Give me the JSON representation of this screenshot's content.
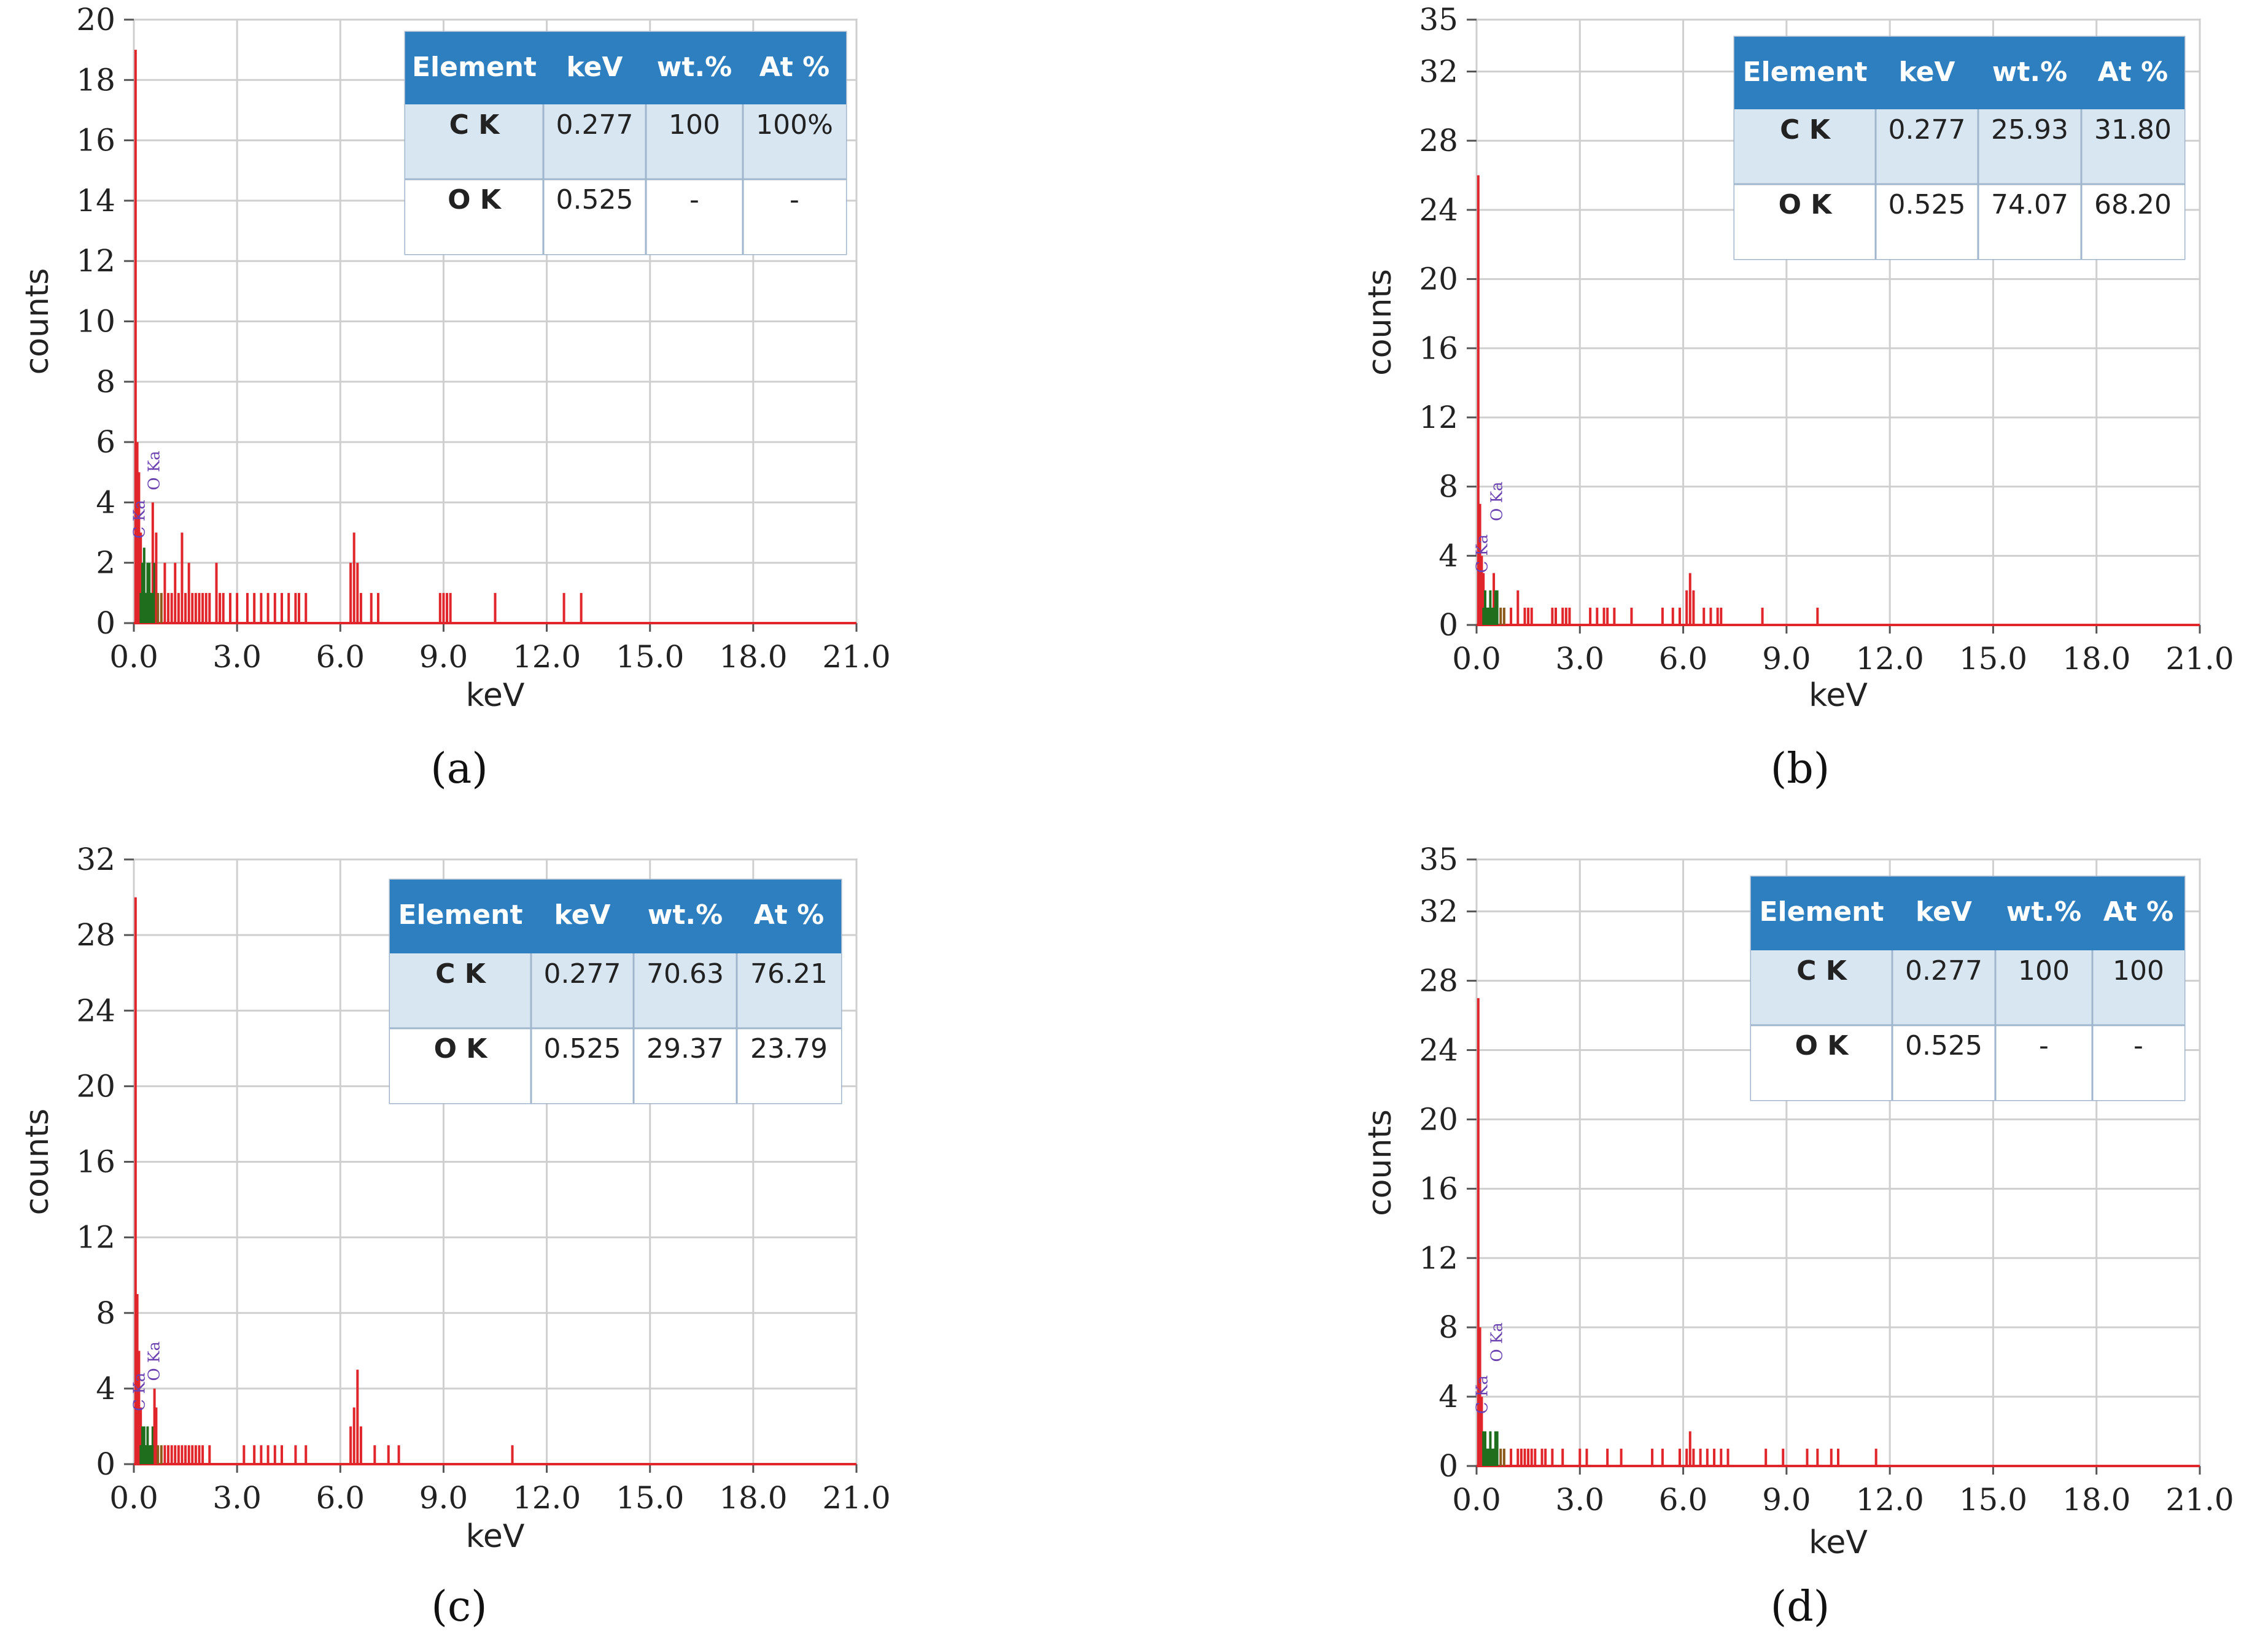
{
  "figure": {
    "panel_labels": [
      "(a)",
      "(b)",
      "(c)",
      "(d)"
    ],
    "axis_xlabel": "keV",
    "axis_ylabel": "counts",
    "peak_labels": [
      "C Ka",
      "O Ka"
    ],
    "table_headers": [
      "Element",
      "keV",
      "wt.%",
      "At %"
    ],
    "colors": {
      "spectrum": "#e0252b",
      "spectrum_dark": "#1e6e1e",
      "spectrum_brown": "#8a5a1a",
      "header": "#2e7fbf",
      "row_band": "#d8e6f2",
      "grid": "#cfcfcf",
      "peak_label": "#6a3fb0"
    }
  },
  "chart_data": [
    {
      "type": "bar",
      "panel": "(a)",
      "xlabel": "keV",
      "ylabel": "counts",
      "xlim": [
        0,
        21
      ],
      "ylim": [
        0,
        20
      ],
      "xticks": [
        "0.0",
        "3.0",
        "6.0",
        "9.0",
        "12.0",
        "15.0",
        "18.0",
        "21.0"
      ],
      "yticks": [
        "0",
        "2",
        "4",
        "6",
        "8",
        "10",
        "12",
        "14",
        "16",
        "18",
        "20"
      ],
      "peaks": [
        [
          0.05,
          19
        ],
        [
          0.1,
          6
        ],
        [
          0.15,
          5
        ],
        [
          0.2,
          3
        ],
        [
          0.25,
          2
        ],
        [
          0.3,
          2.5
        ],
        [
          0.35,
          1
        ],
        [
          0.4,
          2
        ],
        [
          0.45,
          2
        ],
        [
          0.5,
          1
        ],
        [
          0.55,
          4
        ],
        [
          0.6,
          2
        ],
        [
          0.65,
          3
        ],
        [
          0.7,
          1
        ],
        [
          0.8,
          1
        ],
        [
          0.9,
          2
        ],
        [
          1.0,
          1
        ],
        [
          1.1,
          1
        ],
        [
          1.2,
          2
        ],
        [
          1.3,
          1
        ],
        [
          1.4,
          3
        ],
        [
          1.5,
          1
        ],
        [
          1.6,
          2
        ],
        [
          1.7,
          1
        ],
        [
          1.8,
          1
        ],
        [
          1.9,
          1
        ],
        [
          2.0,
          1
        ],
        [
          2.1,
          1
        ],
        [
          2.2,
          1
        ],
        [
          2.4,
          2
        ],
        [
          2.5,
          1
        ],
        [
          2.6,
          1
        ],
        [
          2.8,
          1
        ],
        [
          3.0,
          1
        ],
        [
          3.3,
          1
        ],
        [
          3.5,
          1
        ],
        [
          3.7,
          1
        ],
        [
          3.9,
          1
        ],
        [
          4.1,
          1
        ],
        [
          4.3,
          1
        ],
        [
          4.5,
          1
        ],
        [
          4.7,
          1
        ],
        [
          4.8,
          1
        ],
        [
          5.0,
          1
        ],
        [
          6.3,
          2
        ],
        [
          6.4,
          3
        ],
        [
          6.5,
          2
        ],
        [
          6.6,
          1
        ],
        [
          6.9,
          1
        ],
        [
          7.1,
          1
        ],
        [
          8.9,
          1
        ],
        [
          9.0,
          1
        ],
        [
          9.1,
          1
        ],
        [
          9.2,
          1
        ],
        [
          10.5,
          1
        ],
        [
          12.5,
          1
        ],
        [
          13.0,
          1
        ]
      ],
      "peak_label_values": [
        [
          0.277,
          2.8
        ],
        [
          0.525,
          4.4
        ]
      ],
      "table": {
        "headers": [
          "Element",
          "keV",
          "wt.%",
          "At %"
        ],
        "rows": [
          [
            "C K",
            "0.277",
            "100",
            "100%"
          ],
          [
            "O K",
            "0.525",
            "-",
            "-"
          ]
        ]
      }
    },
    {
      "type": "bar",
      "panel": "(b)",
      "xlabel": "keV",
      "ylabel": "counts",
      "xlim": [
        0,
        21
      ],
      "ylim": [
        0,
        35
      ],
      "xticks": [
        "0.0",
        "3.0",
        "6.0",
        "9.0",
        "12.0",
        "15.0",
        "18.0",
        "21.0"
      ],
      "yticks": [
        "0",
        "4",
        "8",
        "12",
        "16",
        "20",
        "24",
        "28",
        "32",
        "35"
      ],
      "peaks": [
        [
          0.05,
          26
        ],
        [
          0.1,
          7
        ],
        [
          0.15,
          4
        ],
        [
          0.2,
          3
        ],
        [
          0.25,
          2
        ],
        [
          0.3,
          1
        ],
        [
          0.4,
          2
        ],
        [
          0.5,
          3
        ],
        [
          0.55,
          2
        ],
        [
          0.6,
          2
        ],
        [
          0.7,
          1
        ],
        [
          0.8,
          1
        ],
        [
          1.0,
          1
        ],
        [
          1.2,
          2
        ],
        [
          1.4,
          1
        ],
        [
          1.5,
          1
        ],
        [
          1.6,
          1
        ],
        [
          2.2,
          1
        ],
        [
          2.3,
          1
        ],
        [
          2.5,
          1
        ],
        [
          2.6,
          1
        ],
        [
          2.7,
          1
        ],
        [
          3.3,
          1
        ],
        [
          3.5,
          1
        ],
        [
          3.7,
          1
        ],
        [
          3.8,
          1
        ],
        [
          4.0,
          1
        ],
        [
          4.5,
          1
        ],
        [
          5.4,
          1
        ],
        [
          5.7,
          1
        ],
        [
          5.9,
          1
        ],
        [
          6.1,
          2
        ],
        [
          6.2,
          3
        ],
        [
          6.3,
          2
        ],
        [
          6.6,
          1
        ],
        [
          6.8,
          1
        ],
        [
          7.0,
          1
        ],
        [
          7.1,
          1
        ],
        [
          8.3,
          1
        ],
        [
          9.9,
          1
        ]
      ],
      "peak_label_values": [
        [
          0.277,
          3.0
        ],
        [
          0.525,
          6.0
        ]
      ],
      "table": {
        "headers": [
          "Element",
          "keV",
          "wt.%",
          "At %"
        ],
        "rows": [
          [
            "C K",
            "0.277",
            "25.93",
            "31.80"
          ],
          [
            "O K",
            "0.525",
            "74.07",
            "68.20"
          ]
        ]
      }
    },
    {
      "type": "bar",
      "panel": "(c)",
      "xlabel": "keV",
      "ylabel": "counts",
      "xlim": [
        0,
        21
      ],
      "ylim": [
        0,
        32
      ],
      "xticks": [
        "0.0",
        "3.0",
        "6.0",
        "9.0",
        "12.0",
        "15.0",
        "18.0",
        "21.0"
      ],
      "yticks": [
        "0",
        "4",
        "8",
        "12",
        "16",
        "20",
        "24",
        "28",
        "32"
      ],
      "peaks": [
        [
          0.05,
          30
        ],
        [
          0.1,
          9
        ],
        [
          0.15,
          6
        ],
        [
          0.2,
          3
        ],
        [
          0.25,
          2
        ],
        [
          0.3,
          2
        ],
        [
          0.35,
          1
        ],
        [
          0.4,
          2
        ],
        [
          0.5,
          1
        ],
        [
          0.55,
          2
        ],
        [
          0.6,
          4
        ],
        [
          0.65,
          3
        ],
        [
          0.7,
          1
        ],
        [
          0.8,
          1
        ],
        [
          0.9,
          1
        ],
        [
          1.0,
          1
        ],
        [
          1.1,
          1
        ],
        [
          1.2,
          1
        ],
        [
          1.3,
          1
        ],
        [
          1.4,
          1
        ],
        [
          1.5,
          1
        ],
        [
          1.6,
          1
        ],
        [
          1.7,
          1
        ],
        [
          1.8,
          1
        ],
        [
          1.9,
          1
        ],
        [
          2.0,
          1
        ],
        [
          2.2,
          1
        ],
        [
          3.2,
          1
        ],
        [
          3.5,
          1
        ],
        [
          3.7,
          1
        ],
        [
          3.9,
          1
        ],
        [
          4.1,
          1
        ],
        [
          4.3,
          1
        ],
        [
          4.7,
          1
        ],
        [
          5.0,
          1
        ],
        [
          6.3,
          2
        ],
        [
          6.4,
          3
        ],
        [
          6.5,
          5
        ],
        [
          6.6,
          2
        ],
        [
          7.0,
          1
        ],
        [
          7.4,
          1
        ],
        [
          7.7,
          1
        ],
        [
          11.0,
          1
        ]
      ],
      "peak_label_values": [
        [
          0.277,
          2.8
        ],
        [
          0.525,
          4.4
        ]
      ],
      "table": {
        "headers": [
          "Element",
          "keV",
          "wt.%",
          "At %"
        ],
        "rows": [
          [
            "C K",
            "0.277",
            "70.63",
            "76.21"
          ],
          [
            "O K",
            "0.525",
            "29.37",
            "23.79"
          ]
        ]
      }
    },
    {
      "type": "bar",
      "panel": "(d)",
      "xlabel": "keV",
      "ylabel": "counts",
      "xlim": [
        0,
        21
      ],
      "ylim": [
        0,
        35
      ],
      "xticks": [
        "0.0",
        "3.0",
        "6.0",
        "9.0",
        "12.0",
        "15.0",
        "18.0",
        "21.0"
      ],
      "yticks": [
        "0",
        "4",
        "8",
        "12",
        "16",
        "20",
        "24",
        "28",
        "32",
        "35"
      ],
      "peaks": [
        [
          0.05,
          27
        ],
        [
          0.1,
          8
        ],
        [
          0.15,
          4
        ],
        [
          0.2,
          2
        ],
        [
          0.25,
          2
        ],
        [
          0.3,
          1
        ],
        [
          0.4,
          2
        ],
        [
          0.5,
          1
        ],
        [
          0.55,
          2
        ],
        [
          0.6,
          2
        ],
        [
          0.7,
          1
        ],
        [
          0.8,
          1
        ],
        [
          1.0,
          1
        ],
        [
          1.2,
          1
        ],
        [
          1.3,
          1
        ],
        [
          1.4,
          1
        ],
        [
          1.5,
          1
        ],
        [
          1.6,
          1
        ],
        [
          1.7,
          1
        ],
        [
          1.9,
          1
        ],
        [
          2.0,
          1
        ],
        [
          2.2,
          1
        ],
        [
          2.5,
          1
        ],
        [
          3.0,
          1
        ],
        [
          3.2,
          1
        ],
        [
          3.8,
          1
        ],
        [
          4.2,
          1
        ],
        [
          5.1,
          1
        ],
        [
          5.4,
          1
        ],
        [
          5.9,
          1
        ],
        [
          6.1,
          1
        ],
        [
          6.2,
          2
        ],
        [
          6.3,
          1
        ],
        [
          6.5,
          1
        ],
        [
          6.7,
          1
        ],
        [
          6.9,
          1
        ],
        [
          7.1,
          1
        ],
        [
          7.3,
          1
        ],
        [
          8.4,
          1
        ],
        [
          8.9,
          1
        ],
        [
          9.6,
          1
        ],
        [
          9.9,
          1
        ],
        [
          10.3,
          1
        ],
        [
          10.5,
          1
        ],
        [
          11.6,
          1
        ]
      ],
      "peak_label_values": [
        [
          0.277,
          3.0
        ],
        [
          0.525,
          6.0
        ]
      ],
      "table": {
        "headers": [
          "Element",
          "keV",
          "wt.%",
          "At %"
        ],
        "rows": [
          [
            "C K",
            "0.277",
            "100",
            "100"
          ],
          [
            "O K",
            "0.525",
            "-",
            "-"
          ]
        ]
      }
    }
  ]
}
